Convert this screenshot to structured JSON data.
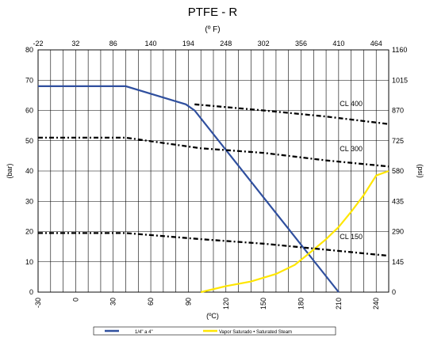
{
  "chart_data": {
    "type": "line",
    "title": "PTFE - R",
    "top_axis_label": "(º F)",
    "xlabel": "(ºC)",
    "ylabel_left": "(bar)",
    "ylabel_right": "(psi)",
    "xlim": [
      -30,
      250
    ],
    "ylim": [
      0,
      80
    ],
    "grid": true,
    "legend_placement": "bottom-center",
    "x_ticks": [
      -30,
      0,
      30,
      60,
      90,
      120,
      150,
      180,
      210,
      240
    ],
    "y_ticks": [
      0,
      10,
      20,
      30,
      40,
      50,
      60,
      70,
      80
    ],
    "top_ticks": [
      {
        "label": "-22",
        "c": -30
      },
      {
        "label": "32",
        "c": 0
      },
      {
        "label": "86",
        "c": 30
      },
      {
        "label": "140",
        "c": 60
      },
      {
        "label": "194",
        "c": 90
      },
      {
        "label": "248",
        "c": 120
      },
      {
        "label": "302",
        "c": 150
      },
      {
        "label": "356",
        "c": 180
      },
      {
        "label": "410",
        "c": 210
      },
      {
        "label": "464",
        "c": 240
      }
    ],
    "right_ticks": [
      {
        "label": "0",
        "bar": 0
      },
      {
        "label": "145",
        "bar": 10
      },
      {
        "label": "290",
        "bar": 20
      },
      {
        "label": "435",
        "bar": 30
      },
      {
        "label": "580",
        "bar": 40
      },
      {
        "label": "725",
        "bar": 50
      },
      {
        "label": "870",
        "bar": 60
      },
      {
        "label": "1015",
        "bar": 70
      },
      {
        "label": "1160",
        "bar": 80
      }
    ],
    "series": [
      {
        "name": "1/4\" a 4\"",
        "color": "#2f4f9e",
        "style": "solid",
        "points": [
          [
            -30,
            68
          ],
          [
            40,
            68
          ],
          [
            88,
            62
          ],
          [
            95,
            60
          ],
          [
            210,
            0
          ]
        ]
      },
      {
        "name": "Vapor Saturado  • Saturated Steam",
        "color": "#ffe600",
        "style": "solid",
        "points": [
          [
            100,
            0
          ],
          [
            120,
            2
          ],
          [
            140,
            3.5
          ],
          [
            160,
            6
          ],
          [
            175,
            9
          ],
          [
            190,
            14
          ],
          [
            200,
            17.5
          ],
          [
            210,
            21.5
          ],
          [
            220,
            26.5
          ],
          [
            230,
            32
          ],
          [
            240,
            38.5
          ],
          [
            250,
            40
          ]
        ]
      },
      {
        "name": "CL 400",
        "color": "#000000",
        "style": "dash-dot",
        "points": [
          [
            95,
            62
          ],
          [
            150,
            60
          ],
          [
            200,
            58
          ],
          [
            250,
            55.5
          ]
        ]
      },
      {
        "name": "CL 300",
        "color": "#000000",
        "style": "dash-dot",
        "points": [
          [
            -30,
            51
          ],
          [
            40,
            51
          ],
          [
            100,
            47.5
          ],
          [
            150,
            46
          ],
          [
            200,
            43.5
          ],
          [
            250,
            41.5
          ]
        ]
      },
      {
        "name": "CL  150",
        "color": "#000000",
        "style": "dash-dot",
        "points": [
          [
            -30,
            19.5
          ],
          [
            40,
            19.5
          ],
          [
            100,
            17.5
          ],
          [
            150,
            16
          ],
          [
            200,
            14
          ],
          [
            250,
            12
          ]
        ]
      }
    ],
    "annotations": [
      {
        "text": "CL 400",
        "x": 220,
        "y": 61.5
      },
      {
        "text": "CL 300",
        "x": 220,
        "y": 46.5
      },
      {
        "text": "CL  150",
        "x": 220,
        "y": 17.5
      }
    ]
  }
}
